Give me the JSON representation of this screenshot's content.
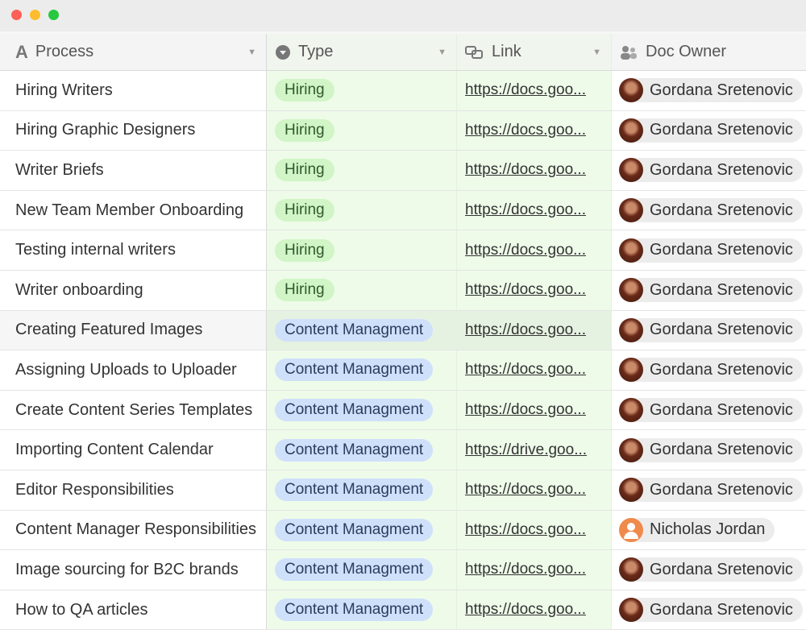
{
  "window": {
    "controls": {
      "close": "#fe5f57",
      "minimize": "#febc2e",
      "maximize": "#28c840"
    }
  },
  "columns": [
    {
      "label": "Process",
      "icon": "text-field-icon"
    },
    {
      "label": "Type",
      "icon": "single-select-icon"
    },
    {
      "label": "Link",
      "icon": "link-icon"
    },
    {
      "label": "Doc Owner",
      "icon": "users-icon"
    }
  ],
  "rows": [
    {
      "process": "Hiring Writers",
      "type": "Hiring",
      "link": "https://docs.goo...",
      "owner": "Gordana Sretenovic"
    },
    {
      "process": "Hiring Graphic Designers",
      "type": "Hiring",
      "link": "https://docs.goo...",
      "owner": "Gordana Sretenovic"
    },
    {
      "process": "Writer Briefs",
      "type": "Hiring",
      "link": "https://docs.goo...",
      "owner": "Gordana Sretenovic"
    },
    {
      "process": "New Team Member Onboarding",
      "type": "Hiring",
      "link": "https://docs.goo...",
      "owner": "Gordana Sretenovic"
    },
    {
      "process": "Testing internal writers",
      "type": "Hiring",
      "link": "https://docs.goo...",
      "owner": "Gordana Sretenovic"
    },
    {
      "process": "Writer onboarding",
      "type": "Hiring",
      "link": "https://docs.goo...",
      "owner": "Gordana Sretenovic"
    },
    {
      "process": "Creating Featured Images",
      "type": "Content Managment",
      "link": "https://docs.goo...",
      "owner": "Gordana Sretenovic"
    },
    {
      "process": "Assigning Uploads to Uploader",
      "type": "Content Managment",
      "link": "https://docs.goo...",
      "owner": "Gordana Sretenovic"
    },
    {
      "process": "Create Content Series Templates",
      "type": "Content Managment",
      "link": "https://docs.goo...",
      "owner": "Gordana Sretenovic"
    },
    {
      "process": "Importing Content Calendar",
      "type": "Content Managment",
      "link": "https://drive.goo...",
      "owner": "Gordana Sretenovic"
    },
    {
      "process": "Editor Responsibilities",
      "type": "Content Managment",
      "link": "https://docs.goo...",
      "owner": "Gordana Sretenovic"
    },
    {
      "process": "Content Manager Responsibilities",
      "type": "Content Managment",
      "link": "https://docs.goo...",
      "owner": "Nicholas Jordan"
    },
    {
      "process": "Image sourcing for B2C brands",
      "type": "Content Managment",
      "link": "https://docs.goo...",
      "owner": "Gordana Sretenovic"
    },
    {
      "process": "How to QA articles",
      "type": "Content Managment",
      "link": "https://docs.goo...",
      "owner": "Gordana Sretenovic"
    }
  ],
  "colors": {
    "hiring_pill": "#d1f5c6",
    "content_pill": "#cfe0fb",
    "selected_column_bg": "#eefbe9"
  }
}
